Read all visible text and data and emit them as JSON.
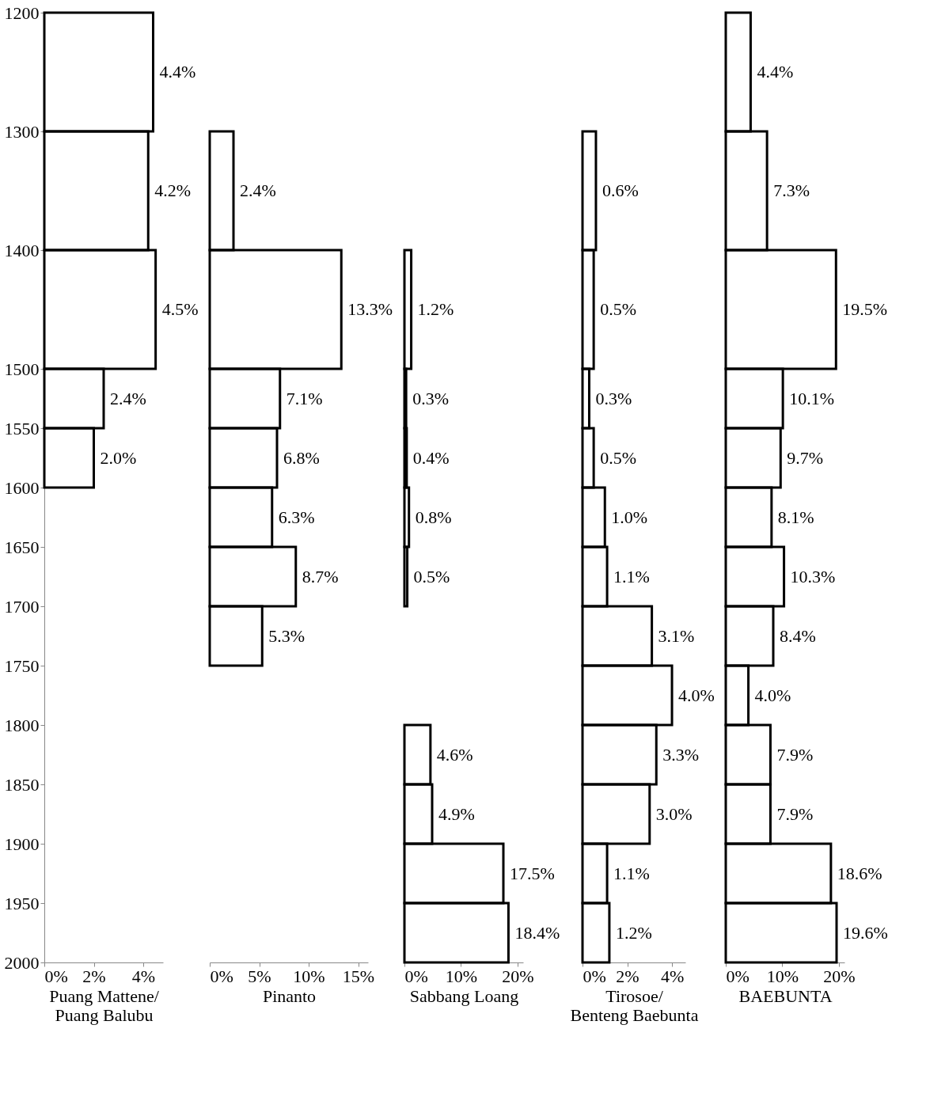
{
  "chart_data": [
    {
      "type": "histogram",
      "orientation": "horizontal",
      "xlabel": "Puang Mattene/\nPuang Balubu",
      "bins": [
        1200,
        1300,
        1400,
        1500,
        1550,
        1600
      ],
      "values": [
        4.4,
        4.2,
        4.5,
        2.4,
        2.0
      ],
      "value_labels": [
        "4.4%",
        "4.2%",
        "4.5%",
        "2.4%",
        "2.0%"
      ],
      "color": "#000000",
      "xlim": [
        0,
        4.8
      ],
      "xticks": [
        {
          "value": 0,
          "label": "0%"
        },
        {
          "value": 2,
          "label": "2%"
        },
        {
          "value": 4,
          "label": "4%"
        }
      ],
      "ylim": [
        2000,
        1200
      ],
      "yticks": [
        1200,
        1300,
        1400,
        1500,
        1550,
        1600,
        1650,
        1700,
        1750,
        1800,
        1850,
        1900,
        1950,
        2000
      ],
      "grid": false
    },
    {
      "type": "histogram",
      "orientation": "horizontal",
      "xlabel": "Pinanto",
      "bins": [
        1300,
        1400,
        1500,
        1550,
        1600,
        1650,
        1700,
        1750
      ],
      "values": [
        2.4,
        13.3,
        7.1,
        6.8,
        6.3,
        8.7,
        5.3
      ],
      "value_labels": [
        "2.4%",
        "13.3%",
        "7.1%",
        "6.8%",
        "6.3%",
        "8.7%",
        "5.3%"
      ],
      "color": "#000000",
      "xlim": [
        0,
        16
      ],
      "xticks": [
        {
          "value": 0,
          "label": "0%"
        },
        {
          "value": 5,
          "label": "5%"
        },
        {
          "value": 10,
          "label": "10%"
        },
        {
          "value": 15,
          "label": "15%"
        }
      ],
      "ylim": [
        2000,
        1200
      ],
      "yticks": [
        1200,
        1300,
        1400,
        1500,
        1550,
        1600,
        1650,
        1700,
        1750,
        1800,
        1850,
        1900,
        1950,
        2000
      ],
      "tick_labels": "x",
      "grid": false
    },
    {
      "type": "histogram",
      "orientation": "horizontal",
      "xlabel": "Sabbang Loang",
      "bins": [
        1400,
        1500,
        1550,
        1600,
        1650,
        1700,
        1800,
        1850,
        1900,
        1950,
        2000
      ],
      "values": [
        1.2,
        0.3,
        0.4,
        0.8,
        0.5,
        null,
        4.6,
        4.9,
        17.5,
        18.4
      ],
      "value_labels": [
        "1.2%",
        "0.3%",
        "0.4%",
        "0.8%",
        "0.5%",
        null,
        "4.6%",
        "4.9%",
        "17.5%",
        "18.4%"
      ],
      "color": "#000000",
      "xlim": [
        0,
        21
      ],
      "xticks": [
        {
          "value": 0,
          "label": "0%"
        },
        {
          "value": 10,
          "label": "10%"
        },
        {
          "value": 20,
          "label": "20%"
        }
      ],
      "ylim": [
        2000,
        1200
      ],
      "yticks": [
        1200,
        1300,
        1400,
        1500,
        1550,
        1600,
        1650,
        1700,
        1750,
        1800,
        1850,
        1900,
        1950,
        2000
      ],
      "tick_labels": "x",
      "grid": false
    },
    {
      "type": "histogram",
      "orientation": "horizontal",
      "xlabel": "Tirosoe/\nBenteng Baebunta",
      "bins": [
        1300,
        1400,
        1500,
        1550,
        1600,
        1650,
        1700,
        1750,
        1800,
        1850,
        1900,
        1950,
        2000
      ],
      "values": [
        0.6,
        0.5,
        0.3,
        0.5,
        1.0,
        1.1,
        3.1,
        4.0,
        3.3,
        3.0,
        1.1,
        1.2
      ],
      "value_labels": [
        "0.6%",
        "0.5%",
        "0.3%",
        "0.5%",
        "1.0%",
        "1.1%",
        "3.1%",
        "4.0%",
        "3.3%",
        "3.0%",
        "1.1%",
        "1.2%"
      ],
      "color": "#000000",
      "xlim": [
        0,
        4.6
      ],
      "xticks": [
        {
          "value": 0,
          "label": "0%"
        },
        {
          "value": 2,
          "label": "2%"
        },
        {
          "value": 4,
          "label": "4%"
        }
      ],
      "ylim": [
        2000,
        1200
      ],
      "yticks": [
        1200,
        1300,
        1400,
        1500,
        1550,
        1600,
        1650,
        1700,
        1750,
        1800,
        1850,
        1900,
        1950,
        2000
      ],
      "tick_labels": "x",
      "grid": false
    },
    {
      "type": "histogram",
      "orientation": "horizontal",
      "xlabel": "BAEBUNTA",
      "bins": [
        1200,
        1300,
        1400,
        1500,
        1550,
        1600,
        1650,
        1700,
        1750,
        1800,
        1850,
        1900,
        1950,
        2000
      ],
      "values": [
        4.4,
        7.3,
        19.5,
        10.1,
        9.7,
        8.1,
        10.3,
        8.4,
        4.0,
        7.9,
        7.9,
        18.6,
        19.6
      ],
      "value_labels": [
        "4.4%",
        "7.3%",
        "19.5%",
        "10.1%",
        "9.7%",
        "8.1%",
        "10.3%",
        "8.4%",
        "4.0%",
        "7.9%",
        "7.9%",
        "18.6%",
        "19.6%"
      ],
      "color": "#000000",
      "xlim": [
        0,
        21
      ],
      "xticks": [
        {
          "value": 0,
          "label": "0%"
        },
        {
          "value": 10,
          "label": "10%"
        },
        {
          "value": 20,
          "label": "20%"
        }
      ],
      "ylim": [
        2000,
        1200
      ],
      "yticks": [
        1200,
        1300,
        1400,
        1500,
        1550,
        1600,
        1650,
        1700,
        1750,
        1800,
        1850,
        1900,
        1950,
        2000
      ],
      "tick_labels": "x",
      "grid": false
    }
  ]
}
